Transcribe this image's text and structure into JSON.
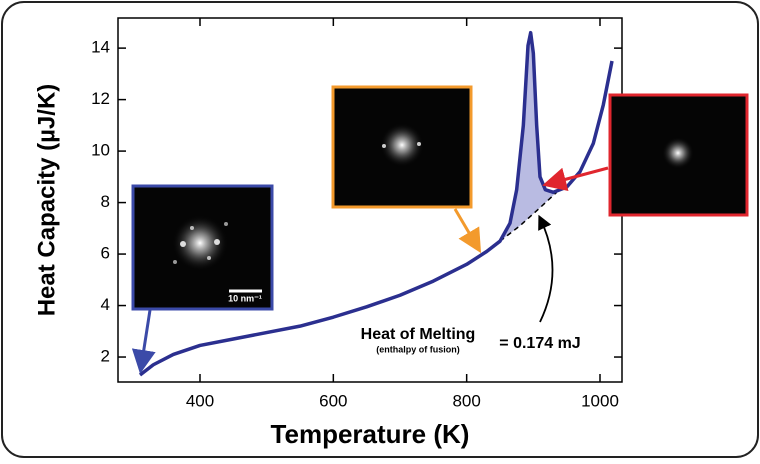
{
  "chart_data": {
    "type": "line",
    "xlabel": "Temperature (K)",
    "ylabel": "Heat Capacity (µJ/K)",
    "x": [
      310,
      330,
      360,
      400,
      450,
      500,
      550,
      600,
      650,
      700,
      750,
      800,
      830,
      850,
      865,
      875,
      885,
      892,
      896,
      900,
      905,
      910,
      918,
      930,
      950,
      970,
      990,
      1005,
      1018
    ],
    "values": [
      1.3,
      1.7,
      2.1,
      2.45,
      2.7,
      2.95,
      3.2,
      3.55,
      3.95,
      4.4,
      4.95,
      5.6,
      6.1,
      6.5,
      7.2,
      8.5,
      11,
      14.1,
      14.6,
      13.8,
      11,
      9,
      8.5,
      8.4,
      8.6,
      9.2,
      10.3,
      11.8,
      13.5
    ],
    "color": "#2b2f8f",
    "baseline": {
      "x": [
        850,
        880,
        910,
        935
      ],
      "values": [
        6.5,
        7.1,
        7.8,
        8.4
      ]
    },
    "fill_color": "#b9bbe2",
    "xlim": [
      277,
      1033
    ],
    "ylim": [
      1.03,
      15.17
    ],
    "xticks": [
      400,
      600,
      800,
      1000
    ],
    "yticks": [
      2,
      4,
      6,
      8,
      10,
      12,
      14
    ],
    "annotations": [
      "Heat of Melting",
      "(enthalpy of fusion)",
      "= 0.174 mJ"
    ],
    "scale_bar_label": "10 nm⁻¹"
  }
}
